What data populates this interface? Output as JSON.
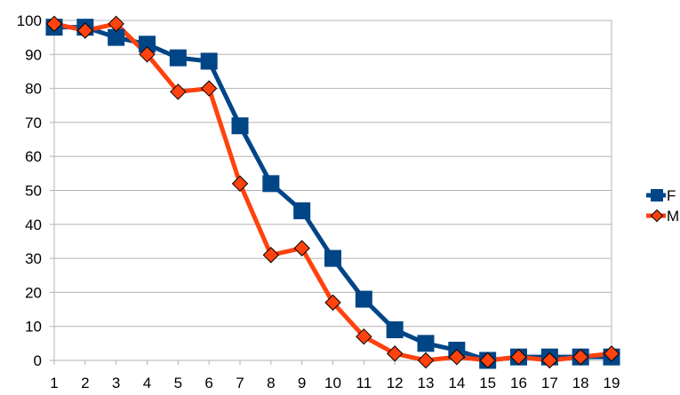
{
  "chart_data": {
    "type": "line",
    "x": [
      1,
      2,
      3,
      4,
      5,
      6,
      7,
      8,
      9,
      10,
      11,
      12,
      13,
      14,
      15,
      16,
      17,
      18,
      19
    ],
    "x_tick_labels": [
      "1",
      "2",
      "3",
      "4",
      "5",
      "6",
      "7",
      "8",
      "9",
      "10",
      "11",
      "12",
      "13",
      "14",
      "15",
      "16",
      "17",
      "18",
      "19"
    ],
    "ylim": [
      0,
      100
    ],
    "y_ticks": [
      0,
      10,
      20,
      30,
      40,
      50,
      60,
      70,
      80,
      90,
      100
    ],
    "y_tick_labels": [
      "0",
      "10",
      "20",
      "30",
      "40",
      "50",
      "60",
      "70",
      "80",
      "90",
      "100"
    ],
    "grid": true,
    "legend_position": "right",
    "series": [
      {
        "name": "F",
        "color": "#004586",
        "marker": "square",
        "values": [
          98,
          98,
          95,
          93,
          89,
          88,
          69,
          52,
          44,
          30,
          18,
          9,
          5,
          3,
          0,
          1,
          1,
          1,
          1
        ]
      },
      {
        "name": "M",
        "color": "#ff420e",
        "marker": "diamond",
        "values": [
          99,
          97,
          99,
          90,
          79,
          80,
          52,
          31,
          33,
          17,
          7,
          2,
          0,
          1,
          0,
          1,
          0,
          1,
          2
        ]
      }
    ]
  }
}
